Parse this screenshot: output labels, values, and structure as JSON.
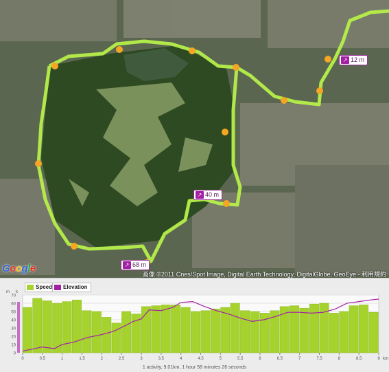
{
  "map": {
    "google_logo": "Google",
    "copyright": "画像 ©2011 Cnes/Spot Image, Digital Earth Technology, DigitalGlobe, GeoEye - 利用規約",
    "elevation_badges": [
      "12 m",
      "68 m",
      "40 m"
    ],
    "colors": {
      "route": "#b6ef4a",
      "marker": "#f5a623",
      "elevation": "#a31fa3"
    }
  },
  "chart": {
    "legend": {
      "speed": "Speed",
      "elevation": "Elevation"
    },
    "y_left_unit": "m",
    "y_right_unit": "k",
    "x_unit": "km",
    "summary": "1 activity, 9.01km, 1 hour 58 minutes 26 seconds"
  },
  "chart_data": {
    "type": "bar",
    "xlabel": "km",
    "xlim": [
      0,
      9
    ],
    "x_ticks": [
      0,
      0.5,
      1,
      1.5,
      2,
      2.5,
      3,
      3.5,
      4,
      4.5,
      5,
      5.5,
      6,
      6.5,
      7,
      7.5,
      8,
      8.5,
      9
    ],
    "ylim": [
      0,
      70
    ],
    "y_ticks": [
      0,
      10,
      20,
      30,
      40,
      50,
      60,
      70
    ],
    "series": [
      {
        "name": "Speed",
        "color": "#a6d22e",
        "x": [
          0.12,
          0.37,
          0.62,
          0.87,
          1.12,
          1.37,
          1.62,
          1.87,
          2.12,
          2.37,
          2.62,
          2.87,
          3.12,
          3.37,
          3.62,
          3.87,
          4.12,
          4.37,
          4.62,
          4.87,
          5.12,
          5.37,
          5.62,
          5.87,
          6.12,
          6.37,
          6.62,
          6.87,
          7.12,
          7.37,
          7.62,
          7.87,
          8.12,
          8.37,
          8.62,
          8.87
        ],
        "values": [
          55,
          66,
          63,
          60,
          62,
          64,
          51,
          50,
          43,
          36,
          50,
          47,
          56,
          57,
          58,
          58,
          55,
          50,
          51,
          53,
          55,
          60,
          51,
          50,
          48,
          51,
          56,
          57,
          54,
          59,
          60,
          48,
          50,
          57,
          58,
          49
        ]
      },
      {
        "name": "Elevation",
        "color": "#a31fa3",
        "x": [
          0,
          0.2,
          0.5,
          0.8,
          1.0,
          1.3,
          1.6,
          2.0,
          2.3,
          2.6,
          2.8,
          3.0,
          3.2,
          3.5,
          3.8,
          4.0,
          4.3,
          4.6,
          4.9,
          5.2,
          5.5,
          5.8,
          6.1,
          6.4,
          6.7,
          7.0,
          7.3,
          7.6,
          7.9,
          8.2,
          8.5,
          8.8,
          9.0
        ],
        "values": [
          2,
          4,
          7,
          5,
          10,
          13,
          18,
          22,
          26,
          33,
          38,
          41,
          52,
          51,
          55,
          61,
          62,
          56,
          51,
          47,
          42,
          38,
          40,
          44,
          49,
          49,
          48,
          49,
          53,
          60,
          62,
          64,
          65
        ]
      }
    ]
  }
}
